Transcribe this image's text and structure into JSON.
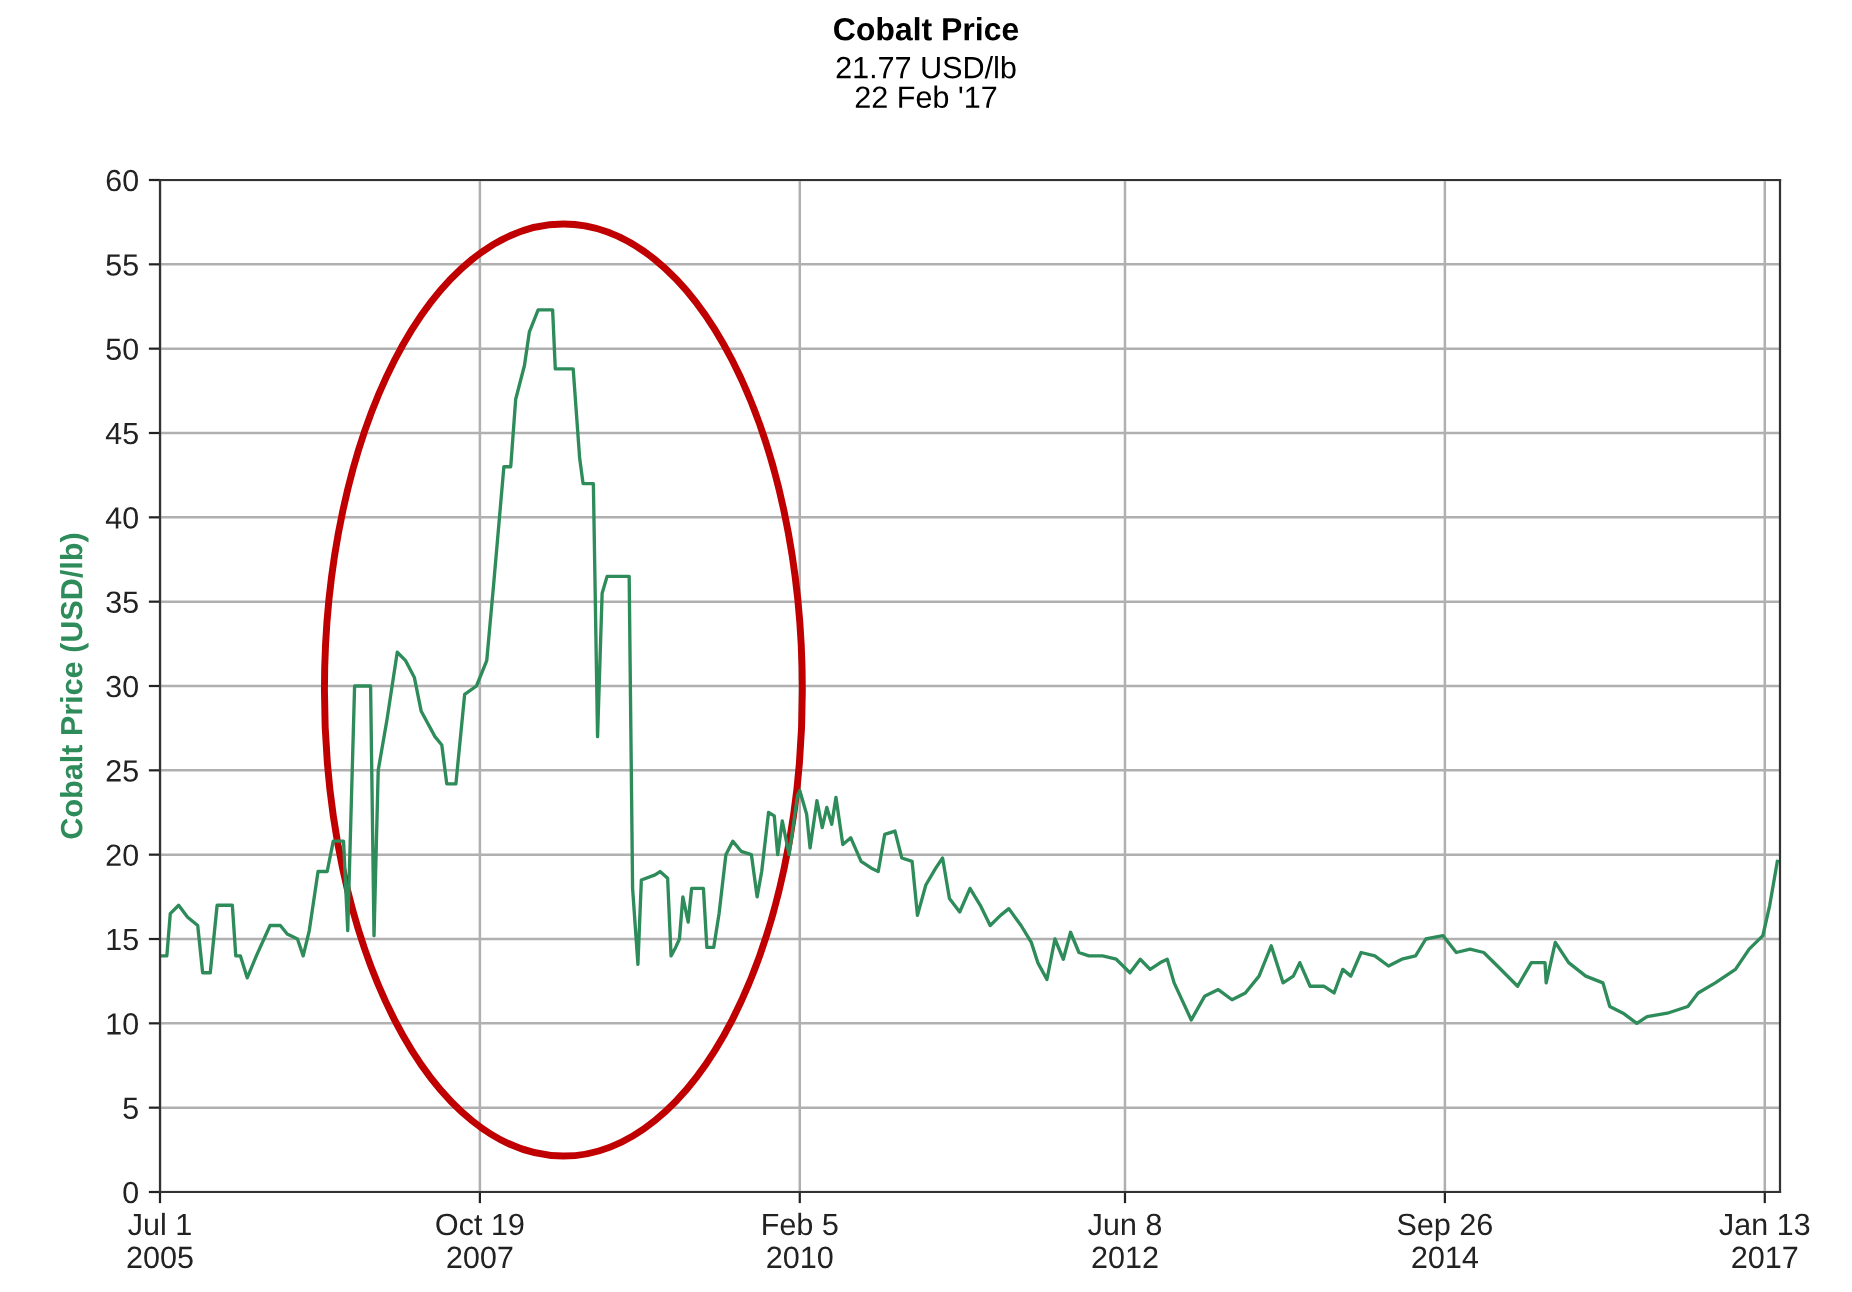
{
  "chart_data": {
    "type": "line",
    "title": "Cobalt Price",
    "subtitle": "21.77 USD/lb\n22 Feb '17",
    "ylabel": "Cobalt Price (USD/lb)",
    "xlim": [
      "2005-07-01",
      "2017-02-22"
    ],
    "ylim": [
      0,
      60
    ],
    "yticks": [
      0,
      5,
      10,
      15,
      20,
      25,
      30,
      35,
      40,
      45,
      50,
      55,
      60
    ],
    "xticks": [
      {
        "value": "2005-07-01",
        "label": "Jul 1\n2005"
      },
      {
        "value": "2007-10-19",
        "label": "Oct 19\n2007"
      },
      {
        "value": "2010-02-05",
        "label": "Feb 5\n2010"
      },
      {
        "value": "2012-06-08",
        "label": "Jun 8\n2012"
      },
      {
        "value": "2014-09-26",
        "label": "Sep 26\n2014"
      },
      {
        "value": "2017-01-13",
        "label": "Jan 13\n2017"
      }
    ],
    "grid": true,
    "legend": false,
    "marker": "none",
    "line_style": "solid",
    "series": [
      {
        "color": "#2e8b5a",
        "x": [
          "2005-07-01",
          "2005-07-19",
          "2005-07-28",
          "2005-08-19",
          "2005-09-11",
          "2005-10-08",
          "2005-10-21",
          "2005-11-10",
          "2005-11-28",
          "2006-01-07",
          "2006-01-16",
          "2006-01-28",
          "2006-02-15",
          "2006-03-11",
          "2006-04-16",
          "2006-05-13",
          "2006-05-31",
          "2006-06-27",
          "2006-07-12",
          "2006-07-28",
          "2006-08-20",
          "2006-09-13",
          "2006-09-29",
          "2006-10-26",
          "2006-11-06",
          "2006-11-24",
          "2007-01-05",
          "2007-01-14",
          "2007-01-25",
          "2007-02-17",
          "2007-03-16",
          "2007-04-07",
          "2007-04-30",
          "2007-05-18",
          "2007-06-23",
          "2007-07-11",
          "2007-07-24",
          "2007-08-17",
          "2007-09-09",
          "2007-10-10",
          "2007-11-06",
          "2007-11-24",
          "2007-12-21",
          "2008-01-08",
          "2008-01-21",
          "2008-02-13",
          "2008-02-26",
          "2008-03-20",
          "2008-04-27",
          "2008-05-04",
          "2008-06-20",
          "2008-07-07",
          "2008-07-16",
          "2008-08-12",
          "2008-08-23",
          "2008-09-04",
          "2008-09-17",
          "2008-11-14",
          "2008-11-23",
          "2008-12-07",
          "2008-12-16",
          "2009-01-21",
          "2009-02-03",
          "2009-02-23",
          "2009-03-04",
          "2009-03-16",
          "2009-03-26",
          "2009-04-04",
          "2009-04-18",
          "2009-04-27",
          "2009-05-28",
          "2009-06-06",
          "2009-06-24",
          "2009-07-08",
          "2009-07-26",
          "2009-08-13",
          "2009-09-04",
          "2009-10-01",
          "2009-10-16",
          "2009-10-28",
          "2009-11-15",
          "2009-11-30",
          "2009-12-09",
          "2009-12-21",
          "2010-01-08",
          "2010-01-30",
          "2010-02-05",
          "2010-02-23",
          "2010-03-04",
          "2010-03-22",
          "2010-04-05",
          "2010-04-17",
          "2010-04-30",
          "2010-05-11",
          "2010-05-29",
          "2010-06-19",
          "2010-07-16",
          "2010-08-12",
          "2010-08-30",
          "2010-09-16",
          "2010-10-13",
          "2010-10-31",
          "2010-11-27",
          "2010-12-11",
          "2011-01-02",
          "2011-01-28",
          "2011-02-15",
          "2011-03-05",
          "2011-04-01",
          "2011-04-28",
          "2011-05-25",
          "2011-06-20",
          "2011-07-17",
          "2011-08-08",
          "2011-09-09",
          "2011-10-06",
          "2011-10-23",
          "2011-11-16",
          "2011-12-07",
          "2011-12-29",
          "2012-01-17",
          "2012-02-08",
          "2012-03-05",
          "2012-04-10",
          "2012-05-16",
          "2012-06-21",
          "2012-07-18",
          "2012-08-13",
          "2012-09-09",
          "2012-09-27",
          "2012-10-15",
          "2012-11-29",
          "2013-01-03",
          "2013-02-08",
          "2013-03-16",
          "2013-04-20",
          "2013-05-26",
          "2013-06-27",
          "2013-07-28",
          "2013-08-24",
          "2013-09-10",
          "2013-10-07",
          "2013-11-12",
          "2013-12-09",
          "2014-01-01",
          "2014-01-22",
          "2014-02-18",
          "2014-03-26",
          "2014-05-01",
          "2014-06-05",
          "2014-07-11",
          "2014-08-07",
          "2014-09-21",
          "2014-10-26",
          "2014-12-01",
          "2015-01-06",
          "2015-02-11",
          "2015-04-05",
          "2015-05-11",
          "2015-06-16",
          "2015-06-19",
          "2015-07-13",
          "2015-08-17",
          "2015-10-01",
          "2015-11-15",
          "2015-12-03",
          "2016-01-07",
          "2016-02-12",
          "2016-03-10",
          "2016-05-02",
          "2016-06-25",
          "2016-07-22",
          "2016-09-05",
          "2016-10-28",
          "2016-12-03",
          "2017-01-08",
          "2017-01-26",
          "2017-02-15"
        ],
        "values": [
          14,
          14,
          16.5,
          17,
          16.3,
          15.8,
          13,
          13,
          17,
          17,
          14,
          14,
          12.7,
          14,
          15.8,
          15.8,
          15.3,
          15,
          14,
          15.5,
          19,
          19,
          20.8,
          20.8,
          15.5,
          30,
          30,
          15.2,
          25,
          28,
          32,
          31.5,
          30.5,
          28.5,
          27,
          26.5,
          24.2,
          24.2,
          29.5,
          30,
          31.5,
          36,
          43,
          43,
          47,
          49,
          51,
          52.3,
          52.3,
          48.8,
          48.8,
          43.5,
          42,
          42,
          27,
          35.5,
          36.5,
          36.5,
          18,
          13.5,
          18.5,
          18.8,
          19,
          18.6,
          14,
          14.5,
          15,
          17.5,
          16,
          18,
          18,
          14.5,
          14.5,
          16.5,
          20,
          20.8,
          20.2,
          20,
          17.5,
          19,
          22.5,
          22.3,
          20,
          22,
          20,
          23.5,
          23.8,
          22.4,
          20.4,
          23.2,
          21.6,
          22.8,
          21.8,
          23.4,
          20.6,
          21,
          19.6,
          19.2,
          19,
          21.2,
          21.4,
          19.8,
          19.6,
          16.4,
          18.2,
          19.2,
          19.8,
          17.4,
          16.6,
          18,
          17,
          15.8,
          16.4,
          16.8,
          15.8,
          14.8,
          13.6,
          12.6,
          15,
          13.8,
          15.4,
          14.2,
          14,
          14,
          13.8,
          13,
          13.8,
          13.2,
          13.6,
          13.8,
          12.4,
          10.2,
          11.6,
          12,
          11.4,
          11.8,
          12.8,
          14.6,
          12.4,
          12.8,
          13.6,
          12.2,
          12.2,
          11.8,
          13.2,
          12.8,
          14.2,
          14,
          13.4,
          13.8,
          14,
          15,
          15.2,
          14.2,
          14.4,
          14.2,
          13.4,
          12.2,
          13.6,
          13.6,
          12.4,
          14.8,
          13.6,
          12.8,
          12.4,
          11,
          10.6,
          10,
          10.4,
          10.6,
          11,
          11.8,
          12.4,
          13.2,
          14.4,
          15.2,
          17,
          19.6
        ]
      }
    ]
  }
}
